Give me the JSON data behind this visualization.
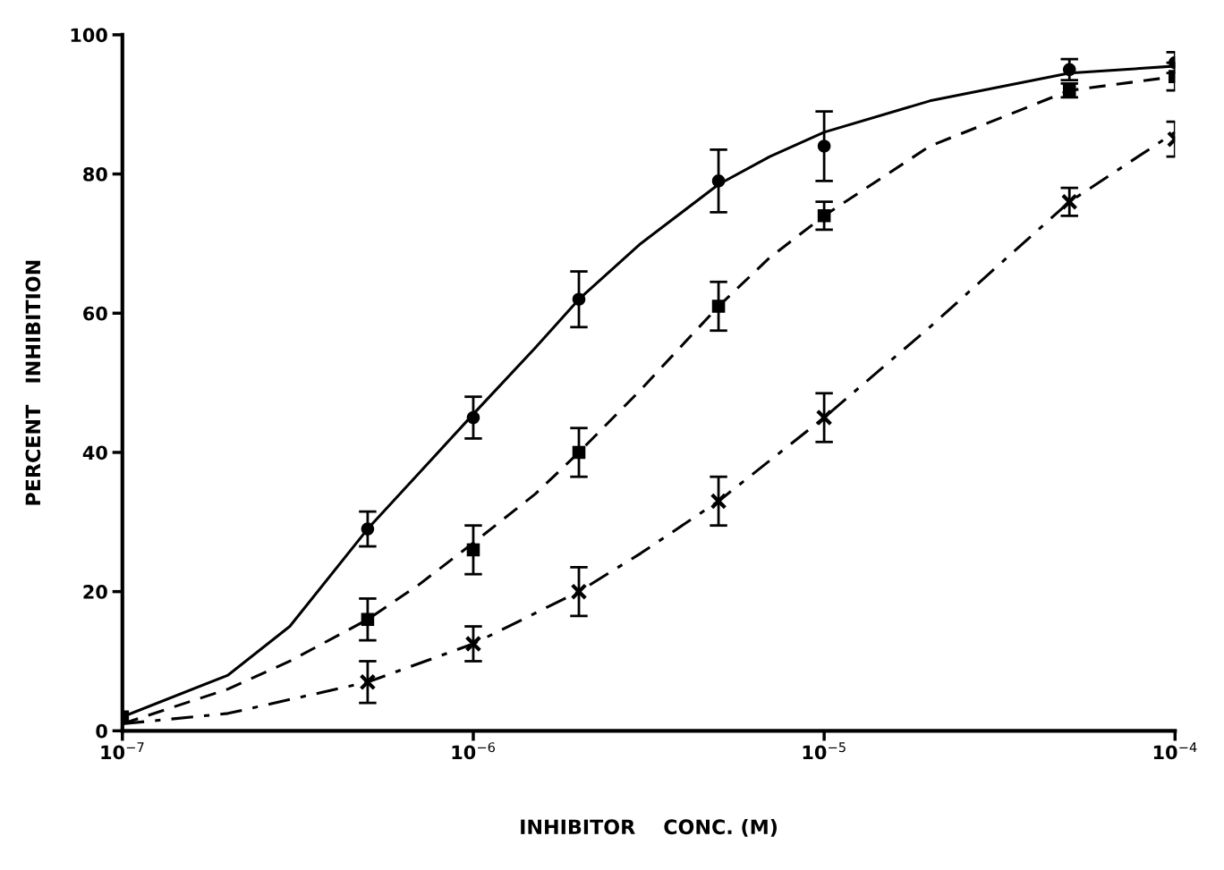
{
  "chart_data": {
    "type": "scatter",
    "xlabel": "INHIBITOR    CONC. (M)",
    "ylabel": "PERCENT   INHIBITION",
    "log": "x",
    "xlim": [
      1e-07,
      0.0001
    ],
    "xticks": [
      {
        "value": 1e-07,
        "label": "10$^{−7}$"
      },
      {
        "value": 1e-06,
        "label": "10$^{−6}$"
      },
      {
        "value": 1e-05,
        "label": "10$^{−5}$"
      },
      {
        "value": 0.0001,
        "label": "10$^{−4}$"
      }
    ],
    "ylim": [
      0,
      100
    ],
    "yticks": [
      0,
      20,
      40,
      60,
      80,
      100
    ],
    "grid": false,
    "legend": false,
    "series": [
      {
        "type": "line",
        "color": "#000000",
        "line_style": "solid",
        "marker": "none",
        "x": [
          1e-07,
          2e-07,
          3e-07,
          5e-07,
          7e-07,
          1e-06,
          1.5e-06,
          2e-06,
          3e-06,
          5e-06,
          7e-06,
          1e-05,
          2e-05,
          5e-05,
          0.0001
        ],
        "values": [
          2,
          8,
          15,
          29,
          37,
          45.5,
          55,
          62,
          70,
          78.5,
          82.5,
          86,
          90.5,
          94.5,
          95.5
        ]
      },
      {
        "type": "line",
        "color": "#000000",
        "line_style": "dashed",
        "marker": "none",
        "x": [
          1e-07,
          2e-07,
          3e-07,
          5e-07,
          7e-07,
          1e-06,
          1.5e-06,
          2e-06,
          3e-06,
          5e-06,
          7e-06,
          1e-05,
          2e-05,
          5e-05,
          0.0001
        ],
        "values": [
          1,
          6,
          10,
          16,
          21,
          27,
          34,
          40,
          49,
          61,
          68,
          74,
          84,
          92,
          94
        ]
      },
      {
        "type": "line",
        "color": "#000000",
        "line_style": "dashdot",
        "marker": "none",
        "x": [
          1e-07,
          2e-07,
          5e-07,
          1e-06,
          2e-06,
          3e-06,
          5e-06,
          1e-05,
          2e-05,
          3e-05,
          5e-05,
          0.0001
        ],
        "values": [
          1,
          2.5,
          7,
          12.5,
          20,
          25.5,
          33,
          45,
          58,
          66,
          76,
          86
        ]
      },
      {
        "color": "#000000",
        "marker": "circle",
        "x": [
          5e-07,
          1e-06,
          2e-06,
          5e-06,
          1e-05,
          5e-05,
          0.0001
        ],
        "values": [
          29,
          45,
          62,
          79,
          84,
          95,
          96
        ],
        "errors": [
          2.5,
          3,
          4,
          4.5,
          5,
          1.5,
          1.5
        ]
      },
      {
        "color": "#000000",
        "marker": "square",
        "x": [
          1e-07,
          5e-07,
          1e-06,
          2e-06,
          5e-06,
          1e-05,
          5e-05,
          0.0001
        ],
        "values": [
          2,
          16,
          26,
          40,
          61,
          74,
          92,
          94
        ],
        "errors": [
          null,
          3,
          3.5,
          3.5,
          3.5,
          2,
          1,
          2
        ]
      },
      {
        "color": "#000000",
        "marker": "cross",
        "x": [
          5e-07,
          1e-06,
          2e-06,
          5e-06,
          1e-05,
          5e-05,
          0.0001
        ],
        "values": [
          7,
          12.5,
          20,
          33,
          45,
          76,
          85
        ],
        "errors": [
          3,
          2.5,
          3.5,
          3.5,
          3.5,
          2,
          2.5
        ]
      }
    ]
  }
}
